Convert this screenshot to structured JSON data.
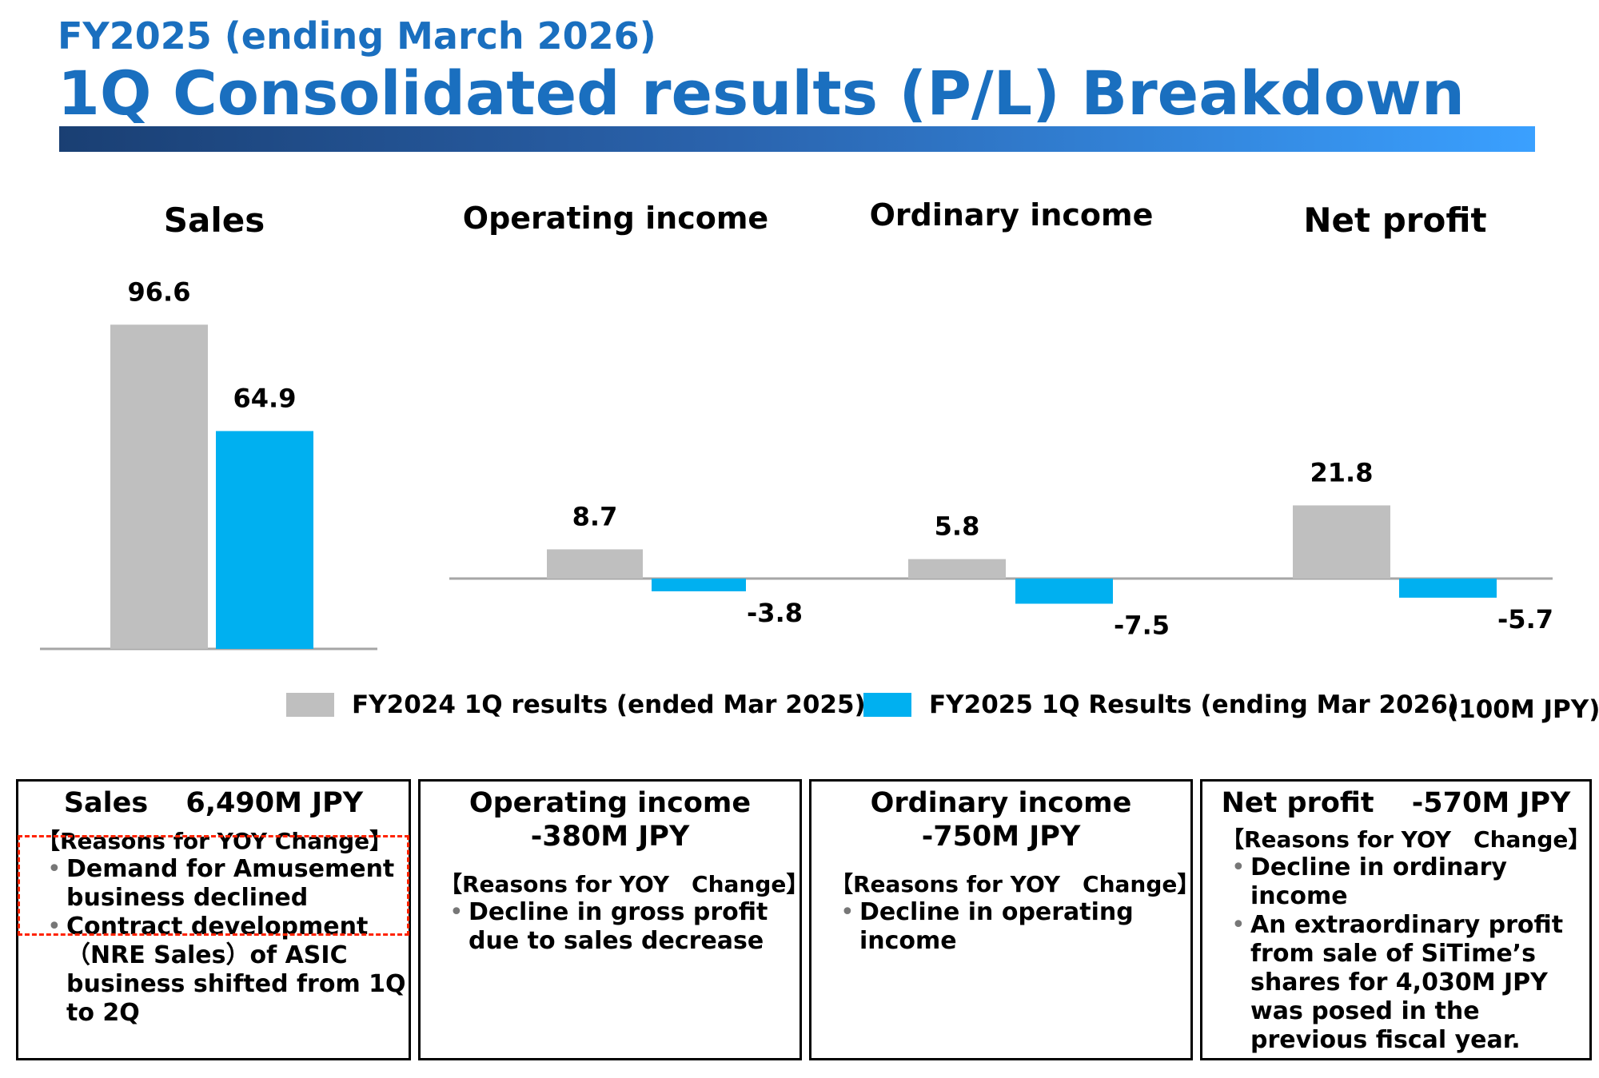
{
  "header": {
    "subtitle": "FY2025 (ending March 2026)",
    "title": "1Q Consolidated results (P/L) Breakdown"
  },
  "colors": {
    "fy2024": "#bfbfbf",
    "fy2025": "#00b0f0",
    "title": "#1a6fbf",
    "highlight": "#ff2200"
  },
  "chart_data": [
    {
      "type": "bar",
      "title": "Sales",
      "series": [
        {
          "name": "FY2024 1Q results (ended Mar 2025)",
          "values": [
            96.6
          ]
        },
        {
          "name": "FY2025 1Q Results (ending Mar 2026)",
          "values": [
            64.9
          ]
        }
      ]
    },
    {
      "type": "bar",
      "title": "Operating income",
      "series": [
        {
          "name": "FY2024 1Q results (ended Mar 2025)",
          "values": [
            8.7
          ]
        },
        {
          "name": "FY2025 1Q Results (ending Mar 2026)",
          "values": [
            -3.8
          ]
        }
      ]
    },
    {
      "type": "bar",
      "title": "Ordinary income",
      "series": [
        {
          "name": "FY2024 1Q results (ended Mar 2025)",
          "values": [
            5.8
          ]
        },
        {
          "name": "FY2025 1Q Results (ending Mar 2026)",
          "values": [
            -7.5
          ]
        }
      ]
    },
    {
      "type": "bar",
      "title": "Net profit",
      "series": [
        {
          "name": "FY2024 1Q results (ended Mar 2025)",
          "values": [
            21.8
          ]
        },
        {
          "name": "FY2025 1Q Results (ending Mar 2026)",
          "values": [
            -5.7
          ]
        }
      ]
    }
  ],
  "legend": {
    "fy2024": "FY2024 1Q results (ended Mar 2025)",
    "fy2025": "FY2025 1Q Results (ending Mar 2026)",
    "unit": "(100M JPY)"
  },
  "boxes": {
    "sales": {
      "title": "Sales　 6,490M JPY",
      "reason_head": "【Reasons for YOY Change】",
      "bullets": [
        "Demand for Amusement business declined",
        "Contract development （NRE Sales）of ASIC business shifted from 1Q to 2Q"
      ]
    },
    "operating": {
      "title_line1": "Operating income",
      "title_line2": "-380M JPY",
      "reason_head": "【Reasons for YOY　Change】",
      "bullets": [
        "Decline in gross profit due to sales decrease"
      ]
    },
    "ordinary": {
      "title_line1": "Ordinary income",
      "title_line2": "-750M JPY",
      "reason_head": "【Reasons for YOY　Change】",
      "bullets": [
        "Decline in operating income"
      ]
    },
    "net": {
      "title": "Net profit　 -570M JPY",
      "reason_head": "【Reasons for YOY　Change】",
      "bullets": [
        "Decline in ordinary income",
        "An extraordinary profit from sale of SiTime’s shares for 4,030M JPY was posed in the previous fiscal year."
      ]
    }
  }
}
